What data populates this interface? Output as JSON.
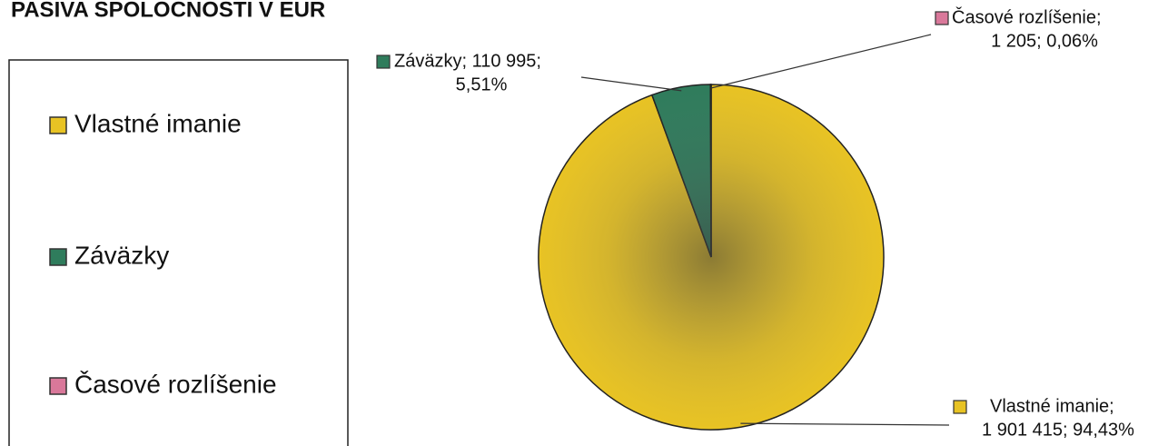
{
  "chart_data": {
    "type": "pie",
    "title": "PASIVA SPOLOCNOSTI V EUR",
    "categories": [
      "Vlastné imanie",
      "Záväzky",
      "Časové rozlíšenie"
    ],
    "values": [
      1901415,
      110995,
      1205
    ],
    "value_labels": [
      [
        "Vlastné imanie;",
        "1 901 415; 94,43%"
      ],
      [
        "Záväzky; 110 995;",
        "5,51%"
      ],
      [
        "Časové rozlíšenie;",
        "1 205; 0,06%"
      ]
    ],
    "colors": [
      "#e8c324",
      "#2f7c5c",
      "#d9789a"
    ]
  }
}
